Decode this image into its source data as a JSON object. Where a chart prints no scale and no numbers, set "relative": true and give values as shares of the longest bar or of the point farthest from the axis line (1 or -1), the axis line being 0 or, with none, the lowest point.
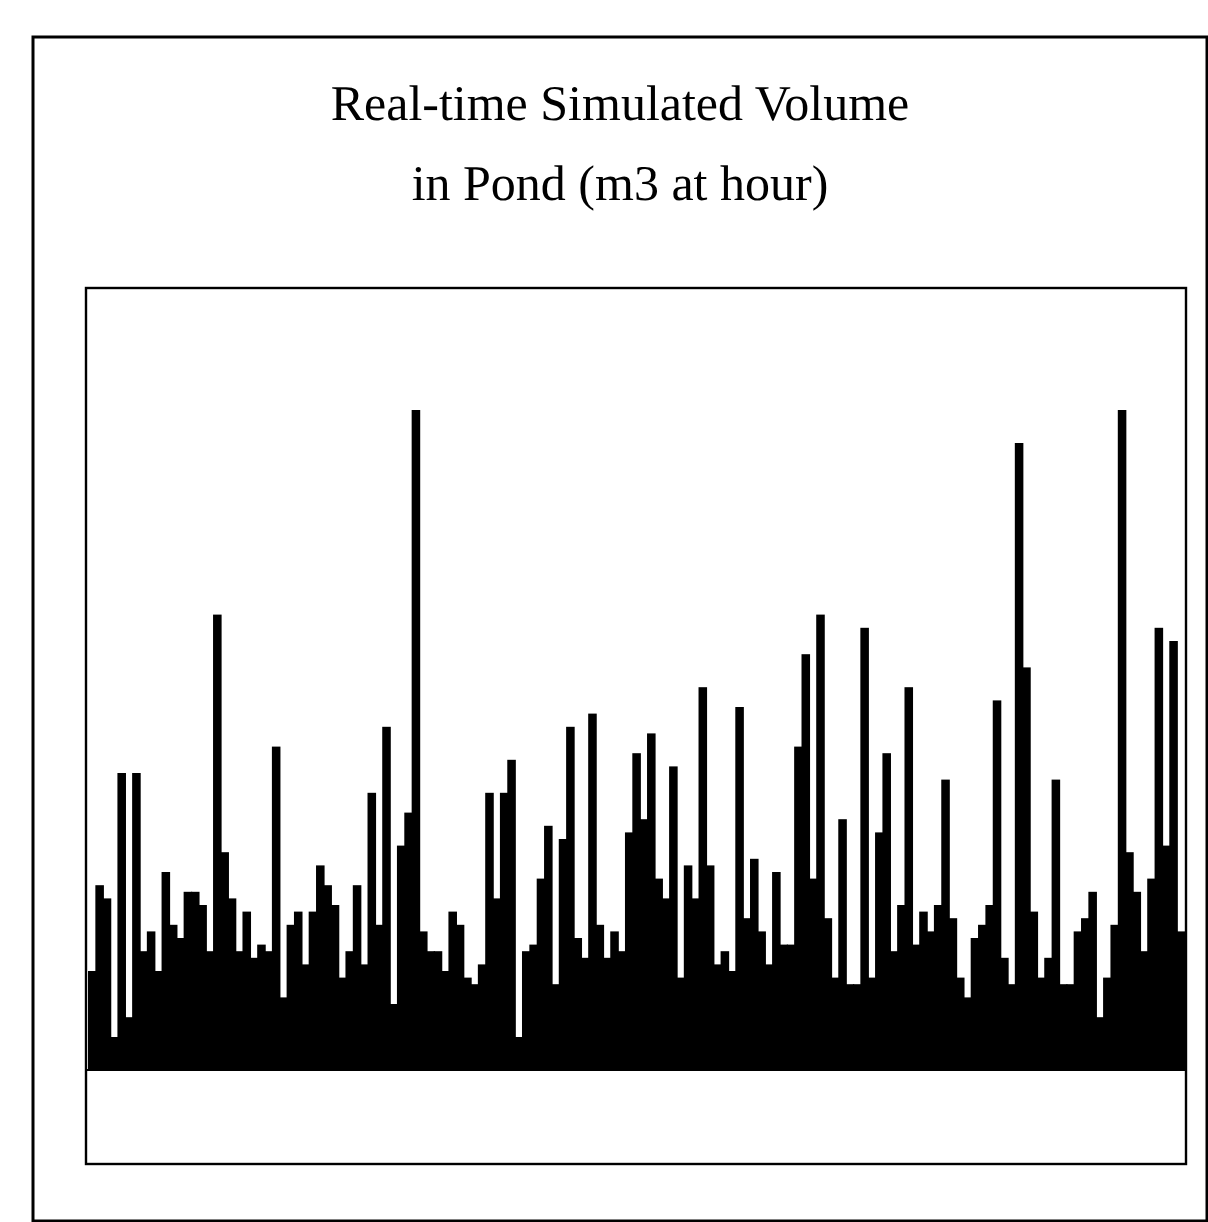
{
  "chart_data": {
    "type": "bar",
    "title": "Real-time Simulated Volume in Pond (m3 at hour)",
    "relative": true,
    "color": "#000000",
    "categories": [
      null,
      null,
      null,
      null,
      null,
      null,
      null,
      null,
      null,
      null,
      null,
      null,
      null,
      null,
      null,
      null,
      null,
      null,
      null,
      null,
      null,
      null,
      null,
      null,
      null,
      null,
      null,
      null,
      null,
      null,
      null,
      null,
      null,
      null,
      null,
      null,
      null,
      null,
      null,
      null,
      null,
      null,
      null,
      null,
      null,
      null,
      null,
      null,
      null,
      null,
      null,
      null,
      null,
      null,
      null,
      null,
      null,
      null,
      null,
      null,
      null,
      null,
      null,
      null,
      null,
      null,
      null,
      null,
      null,
      null,
      null,
      null,
      null,
      null,
      null,
      null,
      null,
      null,
      null,
      null,
      null,
      null,
      null,
      null,
      null,
      null,
      null,
      null,
      null,
      null,
      null,
      null,
      null,
      null,
      null,
      null,
      null,
      null,
      null,
      null,
      null,
      null,
      null,
      null,
      null,
      null,
      null,
      null,
      null,
      null,
      null,
      null,
      null,
      null,
      null,
      null,
      null,
      null,
      null,
      null,
      null,
      null,
      null,
      null,
      null,
      null,
      null,
      null,
      null,
      null,
      null,
      null,
      null,
      null,
      null,
      null,
      null,
      null,
      null,
      null,
      null,
      null,
      null,
      null,
      null,
      null,
      null,
      null,
      null
    ],
    "values": [
      0.15,
      0.28,
      0.26,
      0.05,
      0.45,
      0.08,
      0.45,
      0.18,
      0.21,
      0.15,
      0.3,
      0.22,
      0.2,
      0.27,
      0.27,
      0.25,
      0.18,
      0.69,
      0.33,
      0.26,
      0.18,
      0.24,
      0.17,
      0.19,
      0.18,
      0.49,
      0.11,
      0.22,
      0.24,
      0.16,
      0.24,
      0.31,
      0.28,
      0.25,
      0.14,
      0.18,
      0.28,
      0.16,
      0.42,
      0.22,
      0.52,
      0.1,
      0.34,
      0.39,
      1,
      0.21,
      0.18,
      0.18,
      0.15,
      0.24,
      0.22,
      0.14,
      0.13,
      0.16,
      0.42,
      0.26,
      0.42,
      0.47,
      0.05,
      0.18,
      0.19,
      0.29,
      0.37,
      0.13,
      0.35,
      0.52,
      0.2,
      0.17,
      0.54,
      0.22,
      0.17,
      0.21,
      0.18,
      0.36,
      0.48,
      0.38,
      0.51,
      0.29,
      0.26,
      0.46,
      0.14,
      0.31,
      0.26,
      0.58,
      0.31,
      0.16,
      0.18,
      0.15,
      0.55,
      0.23,
      0.32,
      0.21,
      0.16,
      0.3,
      0.19,
      0.19,
      0.49,
      0.63,
      0.29,
      0.69,
      0.23,
      0.14,
      0.38,
      0.13,
      0.13,
      0.67,
      0.14,
      0.36,
      0.48,
      0.18,
      0.25,
      0.58,
      0.19,
      0.24,
      0.21,
      0.25,
      0.44,
      0.23,
      0.14,
      0.11,
      0.2,
      0.22,
      0.25,
      0.56,
      0.17,
      0.13,
      0.95,
      0.61,
      0.24,
      0.14,
      0.17,
      0.44,
      0.13,
      0.13,
      0.21,
      0.23,
      0.27,
      0.08,
      0.14,
      0.22,
      1,
      0.33,
      0.27,
      0.18,
      0.29,
      0.67,
      0.34,
      0.65,
      0.21
    ]
  }
}
